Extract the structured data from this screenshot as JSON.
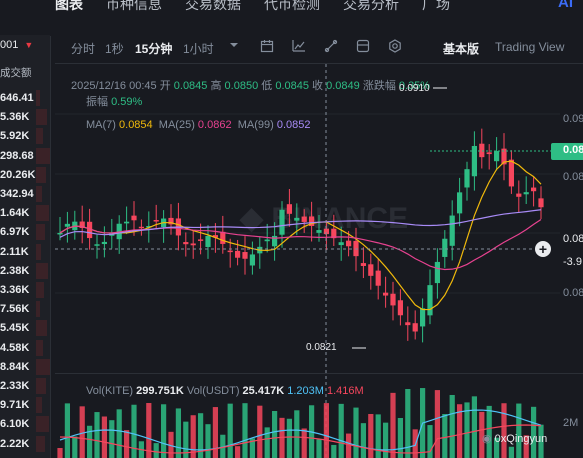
{
  "top_tabs": [
    "图表",
    "币种信息",
    "交易数据",
    "代币检测",
    "交易分析",
    "广场"
  ],
  "top_ai_label": "AI",
  "icons": {
    "bell": "bell-icon",
    "more": "more-icon",
    "indicator": "indicator-icon",
    "layout": "layout-icon",
    "settings": "gear-icon"
  },
  "left_panel": {
    "header": "001",
    "column_label": "成交额",
    "rows": [
      "646.41",
      "5.36K",
      "5.92K",
      "298.68",
      "20.26K",
      "342.94",
      "1.64K",
      "6.97K",
      "2.11K",
      "2.38K",
      "3.36K",
      "7.56K",
      "5.45K",
      "4.58K",
      "8.84K",
      "2.33K",
      "9.71K",
      "6.10K",
      "2.22K"
    ]
  },
  "toolbar": {
    "intervals": [
      "分时",
      "1秒",
      "15分钟",
      "1小时"
    ],
    "active_interval": "15分钟",
    "basic_view": "基本版",
    "tradingview": "Trading View"
  },
  "ohlc": {
    "datetime": "2025/12/16 00:45",
    "open_label": "开",
    "open": "0.0845",
    "high_label": "高",
    "high": "0.0850",
    "low_label": "低",
    "low": "0.0845",
    "close_label": "收",
    "close": "0.0849",
    "change_label": "涨跌幅",
    "change": "0.35%",
    "amp_label": "振幅",
    "amp": "0.59%"
  },
  "ma": {
    "ma7_label": "MA(7)",
    "ma7": "0.0854",
    "ma25_label": "MA(25)",
    "ma25": "0.0862",
    "ma99_label": "MA(99)",
    "ma99": "0.0852"
  },
  "volume": {
    "kite_label": "Vol(KITE)",
    "kite": "299.751K",
    "usdt_label": "Vol(USDT)",
    "usdt": "25.417K",
    "v2": "1.203M",
    "v3": "1.416M",
    "axis_label": "2M"
  },
  "price_axis": {
    "ticks": [
      "0.09",
      "0.08",
      "0.08",
      "0.08"
    ],
    "current_price": "0.08",
    "cursor_price": "0.08",
    "cursor_delta": "-3.9"
  },
  "annotations": {
    "high_marker": "0.0910",
    "low_marker": "0.0821"
  },
  "watermark": "0xQingyun",
  "colors": {
    "up": "#2ebd85",
    "down": "#f6465d",
    "ma7": "#f0b90b",
    "ma25": "#e74290",
    "ma99": "#a88bf7",
    "background": "#181a20"
  },
  "chart_data": {
    "type": "candlestick",
    "visible_range": {
      "low": 0.0821,
      "high": 0.091
    },
    "marked_high": 0.091,
    "marked_low": 0.0821,
    "last_candle": {
      "open": 0.0845,
      "high": 0.085,
      "low": 0.0845,
      "close": 0.0849
    }
  }
}
